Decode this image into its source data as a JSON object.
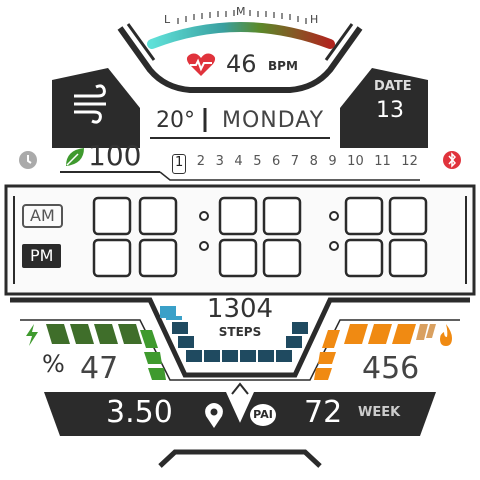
{
  "heart": {
    "range_low": "L",
    "range_mid": "M",
    "range_high": "H",
    "bpm": "46",
    "unit": "BPM"
  },
  "weather": {
    "temperature": "20°"
  },
  "date": {
    "weekday": "MONDAY",
    "label": "DATE",
    "day": "13"
  },
  "battery": {
    "value": "100"
  },
  "months": [
    "1",
    "2",
    "3",
    "4",
    "5",
    "6",
    "7",
    "8",
    "9",
    "10",
    "11",
    "12"
  ],
  "time": {
    "am_label": "AM",
    "pm_label": "PM",
    "active_period": "PM"
  },
  "steps": {
    "value": "1304",
    "label": "STEPS"
  },
  "left_stat": {
    "unit": "%",
    "value": "47"
  },
  "right_stat": {
    "value": "456"
  },
  "bottom": {
    "distance": "3.50",
    "pai_label": "PAI",
    "pai_value": "72",
    "pai_period": "WEEK"
  },
  "colors": {
    "dark": "#2b2b2b",
    "green": "#3f9a2e",
    "orange": "#f08a12",
    "blue": "#3aa0c8",
    "heart_red": "#e0333c"
  }
}
